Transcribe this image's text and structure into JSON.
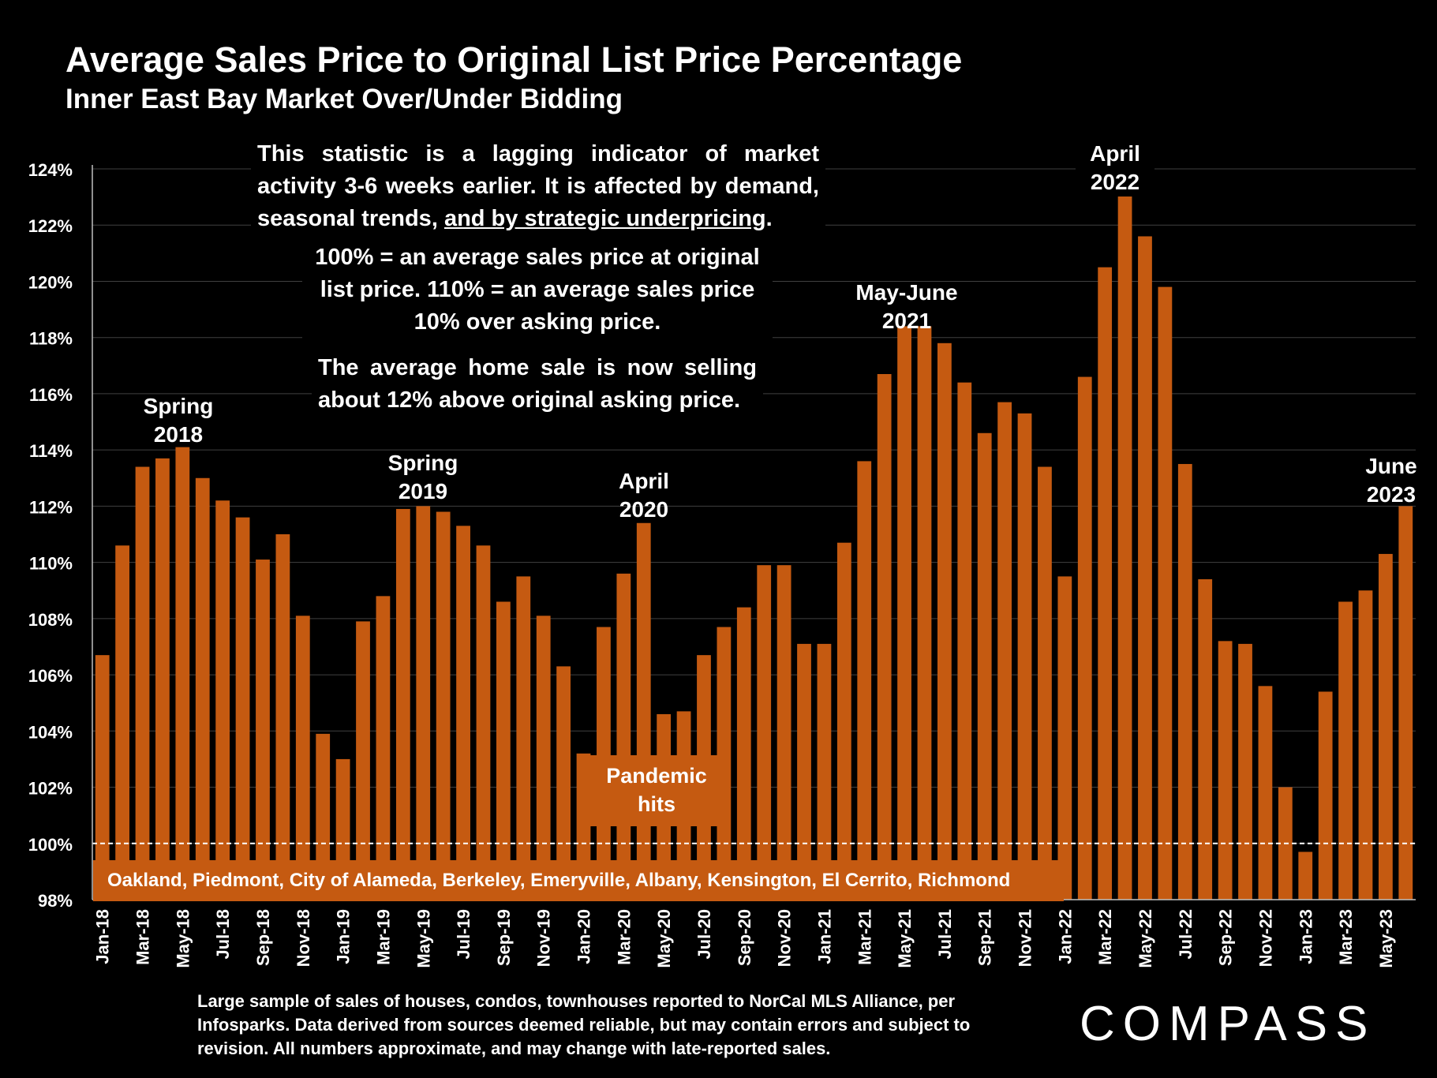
{
  "header": {
    "title": "Average Sales Price to Original List Price Percentage",
    "subtitle": "Inner East Bay Market Over/Under Bidding"
  },
  "notes": {
    "note1_a": "This statistic is a lagging indicator of market activity 3-6 weeks earlier. It is affected by demand, seasonal trends, ",
    "note1_underlined": "and by strategic underpricing",
    "note1_end": ".",
    "note2": "100% = an average sales price at original list price. 110% = an average sales price 10% over asking price.",
    "note3": "The average home sale is now selling about 12% above original asking price."
  },
  "annotations": {
    "spring2018": [
      "Spring",
      "2018"
    ],
    "spring2019": [
      "Spring",
      "2019"
    ],
    "april2020": [
      "April",
      "2020"
    ],
    "mayjune2021": [
      "May-June",
      "2021"
    ],
    "april2022": [
      "April",
      "2022"
    ],
    "june2023": [
      "June",
      "2023"
    ],
    "pandemic": [
      "Pandemic",
      "hits"
    ]
  },
  "region_band": "Oakland, Piedmont, City of Alameda, Berkeley, Emeryville, Albany, Kensington, El Cerrito, Richmond",
  "footnote": "Large sample of sales of houses, condos, townhouses reported to NorCal MLS Alliance, per Infosparks. Data derived from sources deemed reliable, but may contain errors and subject to revision. All numbers approximate, and may change with late-reported sales.",
  "logo": "COMPASS",
  "colors": {
    "bar": "#C55A11",
    "background": "#000000",
    "text": "#FFFFFF"
  },
  "chart_data": {
    "type": "bar",
    "title": "Average Sales Price to Original List Price Percentage",
    "subtitle": "Inner East Bay Market Over/Under Bidding",
    "ylim": [
      98,
      124
    ],
    "yticks": [
      "98%",
      "100%",
      "102%",
      "104%",
      "106%",
      "108%",
      "110%",
      "112%",
      "114%",
      "116%",
      "118%",
      "120%",
      "122%",
      "124%"
    ],
    "reference_line": 100,
    "grid": true,
    "categories": [
      "Jan-18",
      "Feb-18",
      "Mar-18",
      "Apr-18",
      "May-18",
      "Jun-18",
      "Jul-18",
      "Aug-18",
      "Sep-18",
      "Oct-18",
      "Nov-18",
      "Dec-18",
      "Jan-19",
      "Feb-19",
      "Mar-19",
      "Apr-19",
      "May-19",
      "Jun-19",
      "Jul-19",
      "Aug-19",
      "Sep-19",
      "Oct-19",
      "Nov-19",
      "Dec-19",
      "Jan-20",
      "Feb-20",
      "Mar-20",
      "Apr-20",
      "May-20",
      "Jun-20",
      "Jul-20",
      "Aug-20",
      "Sep-20",
      "Oct-20",
      "Nov-20",
      "Dec-20",
      "Jan-21",
      "Feb-21",
      "Mar-21",
      "Apr-21",
      "May-21",
      "Jun-21",
      "Jul-21",
      "Aug-21",
      "Sep-21",
      "Oct-21",
      "Nov-21",
      "Dec-21",
      "Jan-22",
      "Feb-22",
      "Mar-22",
      "Apr-22",
      "May-22",
      "Jun-22",
      "Jul-22",
      "Aug-22",
      "Sep-22",
      "Oct-22",
      "Nov-22",
      "Dec-22",
      "Jan-23",
      "Feb-23",
      "Mar-23",
      "Apr-23",
      "May-23",
      "Jun-23"
    ],
    "tick_labels": [
      "Jan-18",
      "Mar-18",
      "May-18",
      "Jul-18",
      "Sep-18",
      "Nov-18",
      "Jan-19",
      "Mar-19",
      "May-19",
      "Jul-19",
      "Sep-19",
      "Nov-19",
      "Jan-20",
      "Mar-20",
      "May-20",
      "Jul-20",
      "Sep-20",
      "Nov-20",
      "Jan-21",
      "Mar-21",
      "May-21",
      "Jul-21",
      "Sep-21",
      "Nov-21",
      "Jan-22",
      "Mar-22",
      "May-22",
      "Jul-22",
      "Sep-22",
      "Nov-22",
      "Jan-23",
      "Mar-23",
      "May-23"
    ],
    "values": [
      106.7,
      110.6,
      113.4,
      113.7,
      114.1,
      113.0,
      112.2,
      111.6,
      110.1,
      111.0,
      108.1,
      103.9,
      103.0,
      107.9,
      108.8,
      111.9,
      112.0,
      111.8,
      111.3,
      110.6,
      108.6,
      109.5,
      108.1,
      106.3,
      103.2,
      107.7,
      109.6,
      111.4,
      104.6,
      104.7,
      106.7,
      107.7,
      108.4,
      109.9,
      109.9,
      107.1,
      107.1,
      110.7,
      113.6,
      116.7,
      118.4,
      118.4,
      117.8,
      116.4,
      114.6,
      115.7,
      115.3,
      113.4,
      109.5,
      116.6,
      120.5,
      123.5,
      121.6,
      119.8,
      113.5,
      109.4,
      107.2,
      107.1,
      105.6,
      102.0,
      99.7,
      105.4,
      108.6,
      109.0,
      110.3,
      112.0
    ]
  }
}
